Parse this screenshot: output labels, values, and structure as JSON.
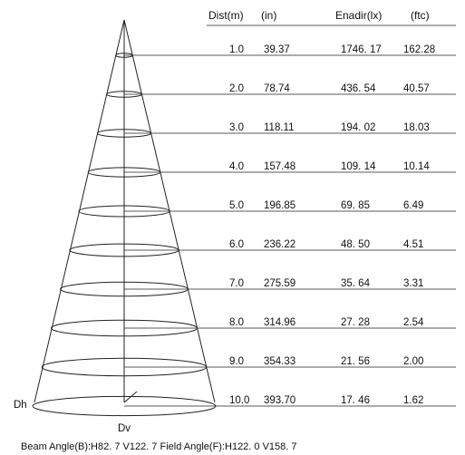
{
  "headers": {
    "dist": "Dist(m)",
    "in": "(in)",
    "enadir": "Enadir(lx)",
    "ftc": "(ftc)"
  },
  "rows": [
    {
      "dist": "1.0",
      "in": "39.37",
      "lx": "1746. 17",
      "ftc": "162.28"
    },
    {
      "dist": "2.0",
      "in": "78.74",
      "lx": "436. 54",
      "ftc": "40.57"
    },
    {
      "dist": "3.0",
      "in": "118.11",
      "lx": "194. 02",
      "ftc": "18.03"
    },
    {
      "dist": "4.0",
      "in": "157.48",
      "lx": "109. 14",
      "ftc": "10.14"
    },
    {
      "dist": "5.0",
      "in": "196.85",
      "lx": "69. 85",
      "ftc": "6.49"
    },
    {
      "dist": "6.0",
      "in": "236.22",
      "lx": "48. 50",
      "ftc": "4.51"
    },
    {
      "dist": "7.0",
      "in": "275.59",
      "lx": "35. 64",
      "ftc": "3.31"
    },
    {
      "dist": "8.0",
      "in": "314.96",
      "lx": "27. 28",
      "ftc": "2.54"
    },
    {
      "dist": "9.0",
      "in": "354.33",
      "lx": "21. 56",
      "ftc": "2.00"
    },
    {
      "dist": "10.0",
      "in": "393.70",
      "lx": "17. 46",
      "ftc": "1.62"
    }
  ],
  "labels": {
    "dh": "Dh",
    "dv": "Dv"
  },
  "caption": "Beam Angle(B):H82. 7 V122. 7   Field Angle(F):H122. 0 V158. 7"
}
